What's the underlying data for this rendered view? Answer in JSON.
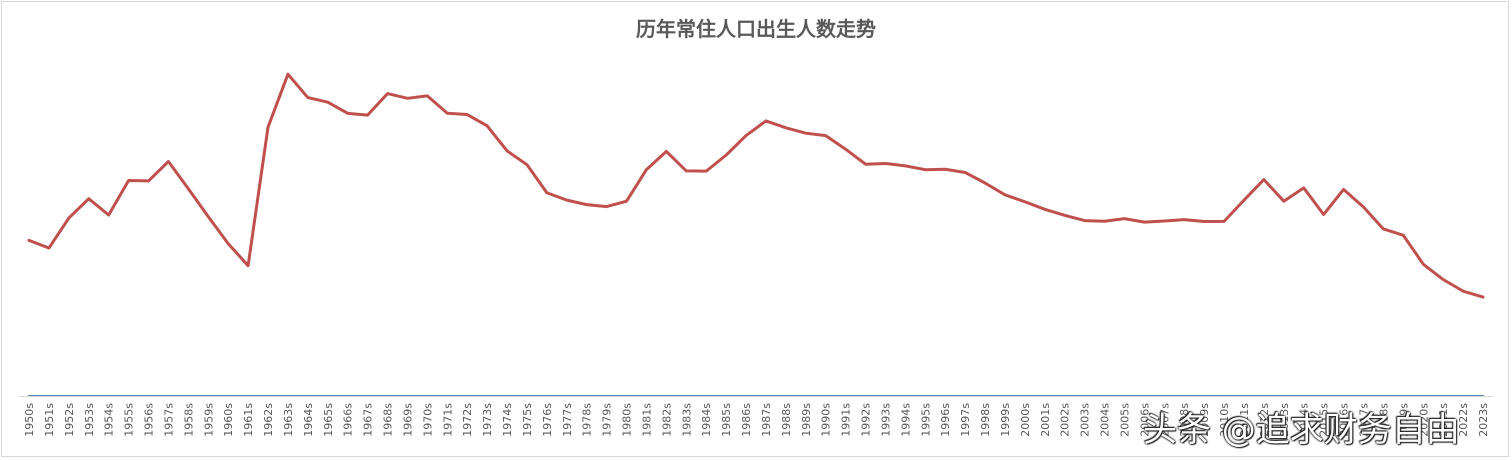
{
  "chart_data": {
    "type": "line",
    "title": "历年常住人口出生人数走势",
    "xlabel": "",
    "ylabel": "",
    "categories": [
      "1950s",
      "1951s",
      "1952s",
      "1953s",
      "1954s",
      "1955s",
      "1956s",
      "1957s",
      "1958s",
      "1959s",
      "1960s",
      "1961s",
      "1962s",
      "1963s",
      "1964s",
      "1965s",
      "1966s",
      "1967s",
      "1968s",
      "1969s",
      "1970s",
      "1971s",
      "1972s",
      "1973s",
      "1974s",
      "1975s",
      "1976s",
      "1977s",
      "1978s",
      "1979s",
      "1980s",
      "1981s",
      "1982s",
      "1983s",
      "1984s",
      "1985s",
      "1986s",
      "1987s",
      "1988s",
      "1989s",
      "1990s",
      "1991s",
      "1992s",
      "1993s",
      "1994s",
      "1995s",
      "1996s",
      "1997s",
      "1998s",
      "1999s",
      "2000s",
      "2001s",
      "2002s",
      "2003s",
      "2004s",
      "2005s",
      "2006s",
      "2007s",
      "2008s",
      "2009s",
      "2010s",
      "2011s",
      "2012s",
      "2013s",
      "2014s",
      "2015s",
      "2016s",
      "2017s",
      "2018s",
      "2019s",
      "2020s",
      "2021s",
      "2022s",
      "2023s"
    ],
    "series": [
      {
        "color": "#c0504d",
        "values": [
          1419,
          1349,
          1622,
          1799,
          1650,
          1965,
          1961,
          2138,
          1889,
          1635,
          1389,
          1188,
          2451,
          2934,
          2721,
          2679,
          2577,
          2561,
          2757,
          2714,
          2736,
          2578,
          2566,
          2463,
          2235,
          2109,
          1853,
          1786,
          1745,
          1727,
          1776,
          2064,
          2230,
          2052,
          2050,
          2196,
          2374,
          2508,
          2445,
          2396,
          2374,
          2250,
          2113,
          2120,
          2098,
          2063,
          2067,
          2038,
          1942,
          1834,
          1771,
          1702,
          1647,
          1599,
          1593,
          1617,
          1585,
          1595,
          1608,
          1591,
          1592,
          1786,
          1973,
          1776,
          1897,
          1655,
          1883,
          1723,
          1523,
          1465,
          1202,
          1062,
          956,
          902
        ]
      },
      {
        "color": "#4f81bd",
        "values": [
          0,
          0,
          0,
          0,
          0,
          0,
          0,
          0,
          0,
          0,
          0,
          0,
          0,
          0,
          0,
          0,
          0,
          0,
          0,
          0,
          0,
          0,
          0,
          0,
          0,
          0,
          0,
          0,
          0,
          0,
          0,
          0,
          0,
          0,
          0,
          0,
          0,
          0,
          0,
          0,
          0,
          0,
          0,
          0,
          0,
          0,
          0,
          0,
          0,
          0,
          0,
          0,
          0,
          0,
          0,
          0,
          0,
          0,
          0,
          0,
          0,
          0,
          0,
          0,
          0,
          0,
          0,
          0,
          0,
          0,
          0,
          0,
          0,
          0
        ]
      }
    ],
    "ylim": [
      0,
      3200
    ],
    "grid": false,
    "legend": "none"
  },
  "watermark": "头条 @追求财务自由"
}
